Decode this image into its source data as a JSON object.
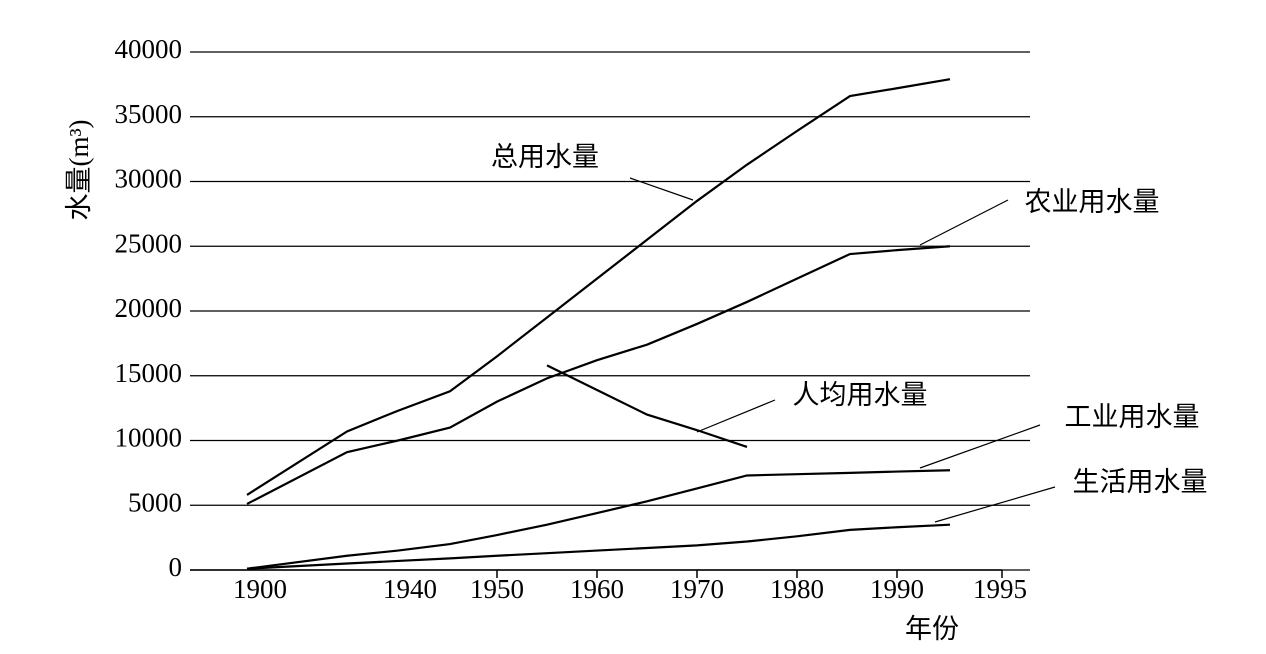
{
  "chart_data": {
    "type": "line",
    "y_label": "水量(m³)",
    "x_label": "年份",
    "categories": [
      "1900",
      null,
      "1940",
      null,
      "1950",
      null,
      "1960",
      null,
      "1970",
      null,
      "1980",
      null,
      "1990",
      null,
      "1995"
    ],
    "series": [
      {
        "name": "总用水量",
        "color": "#000000",
        "values": [
          5800,
          10700,
          12300,
          13800,
          16500,
          19500,
          22500,
          25500,
          28500,
          31300,
          33900,
          36600,
          37200,
          37900,
          null
        ]
      },
      {
        "name": "农业用水量",
        "color": "#000000",
        "values": [
          5100,
          9100,
          10000,
          11000,
          13000,
          14800,
          16200,
          17400,
          19000,
          20700,
          22500,
          24400,
          24700,
          25000,
          null
        ]
      },
      {
        "name": "人均用水量",
        "color": "#000000",
        "values": [
          null,
          null,
          null,
          null,
          null,
          15800,
          13900,
          12000,
          10800,
          9500,
          null,
          null,
          null,
          null,
          null
        ]
      },
      {
        "name": "工业用水量",
        "color": "#000000",
        "values": [
          100,
          1100,
          1500,
          2000,
          2700,
          3500,
          4400,
          5300,
          6300,
          7300,
          7400,
          7500,
          7600,
          7700,
          null
        ]
      },
      {
        "name": "生活用水量",
        "color": "#000000",
        "values": [
          100,
          500,
          700,
          900,
          1100,
          1300,
          1500,
          1700,
          1900,
          2200,
          2600,
          3100,
          3300,
          3500,
          null
        ]
      }
    ],
    "ylim": [
      0,
      40000
    ],
    "yticks": [
      0,
      5000,
      10000,
      15000,
      20000,
      25000,
      30000,
      35000,
      40000
    ],
    "grid": true
  }
}
